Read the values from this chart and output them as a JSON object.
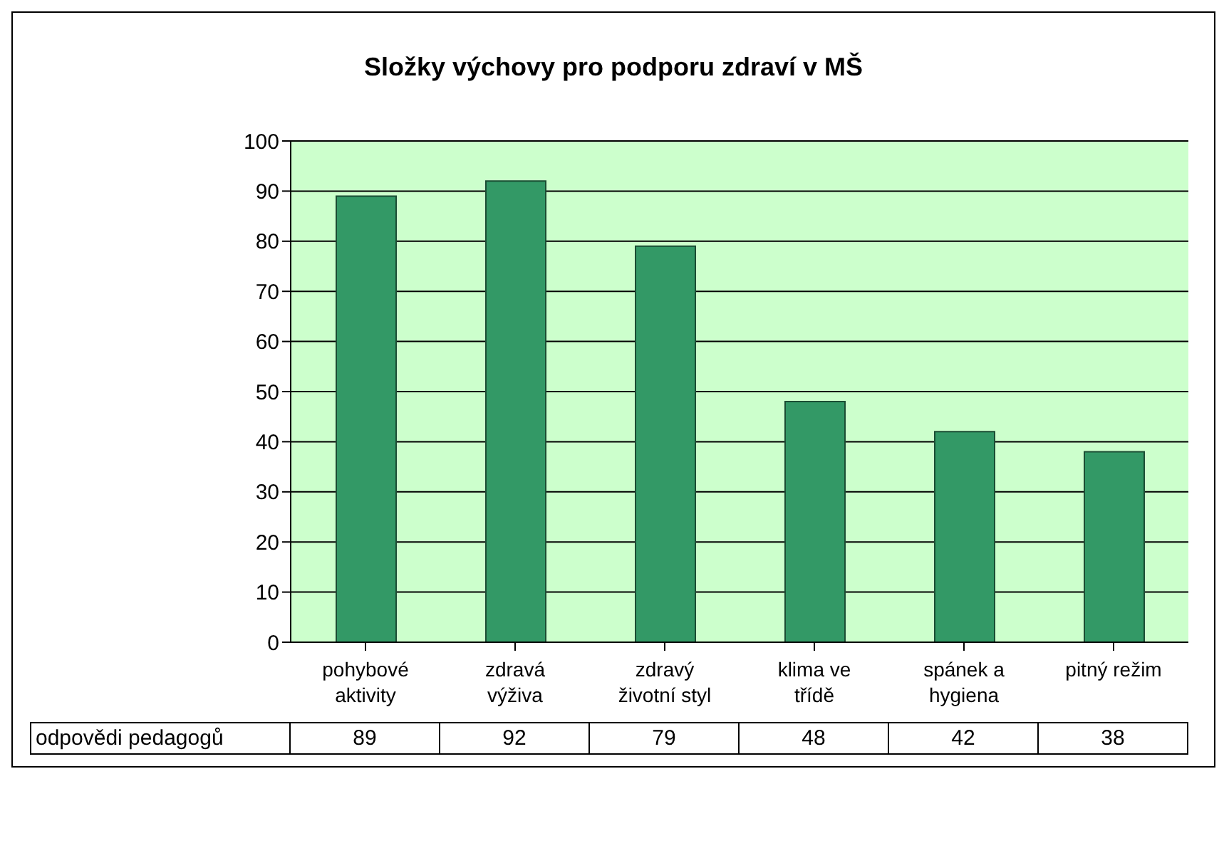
{
  "chart_data": {
    "type": "bar",
    "title": "Složky výchovy pro podporu zdraví v MŠ",
    "categories": [
      "pohybové aktivity",
      "zdravá výživa",
      "zdravý životní styl",
      "klima ve třídě",
      "spánek a hygiena",
      "pitný režim"
    ],
    "series": [
      {
        "name": "odpovědi pedagogů",
        "color": "#339966",
        "values": [
          89,
          92,
          79,
          48,
          42,
          38
        ]
      }
    ],
    "ylim": [
      0,
      100
    ],
    "yticks": [
      0,
      10,
      20,
      30,
      40,
      50,
      60,
      70,
      80,
      90,
      100
    ],
    "grid": "y",
    "data_labels": true
  }
}
